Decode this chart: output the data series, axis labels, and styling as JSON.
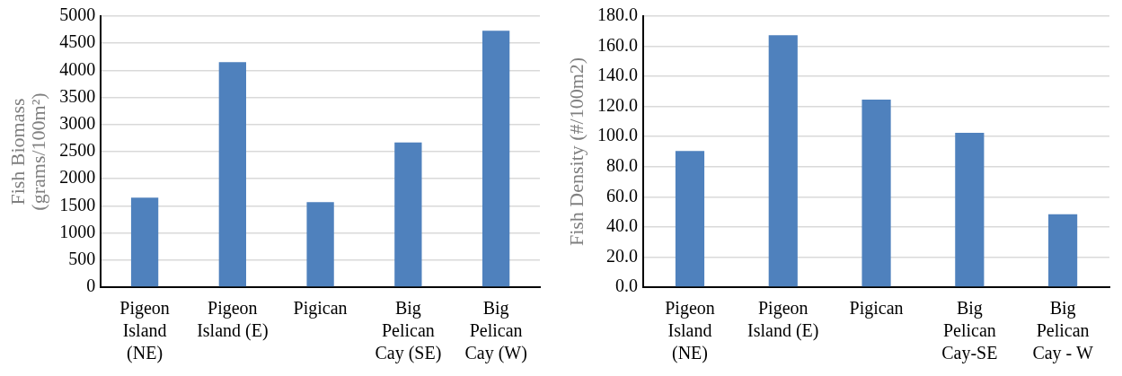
{
  "chart_data": [
    {
      "type": "bar",
      "ylabel": "Fish Biomass\n(grams/100m²)",
      "categories": [
        "Pigeon Island (NE)",
        "Pigeon Island (E)",
        "Pigican",
        "Big Pelican Cay (SE)",
        "Big Pelican Cay (W)"
      ],
      "values": [
        1650,
        4150,
        1570,
        2670,
        4730
      ],
      "color": "#4f81bd",
      "ylim": [
        0,
        5000
      ],
      "yticks": [
        0,
        500,
        1000,
        1500,
        2000,
        2500,
        3000,
        3500,
        4000,
        4500,
        5000
      ],
      "grid": "y",
      "legend": false
    },
    {
      "type": "bar",
      "ylabel": "Fish Density (#/100m2)",
      "categories": [
        "Pigeon Island (NE)",
        "Pigeon Island (E)",
        "Pigican",
        "Big Pelican Cay-SE",
        "Big Pelican Cay - W"
      ],
      "values": [
        90.5,
        167.3,
        124.6,
        102.5,
        48.5
      ],
      "color": "#4f81bd",
      "ylim": [
        0,
        180
      ],
      "yticks": [
        {
          "value": 0,
          "label": "0.0"
        },
        {
          "value": 20,
          "label": "20.0"
        },
        {
          "value": 40,
          "label": "40.0"
        },
        {
          "value": 60,
          "label": "60.0"
        },
        {
          "value": 80,
          "label": "80.0"
        },
        {
          "value": 100,
          "label": "100.0"
        },
        {
          "value": 120,
          "label": "120.0"
        },
        {
          "value": 140,
          "label": "140.0"
        },
        {
          "value": 160,
          "label": "160.0"
        },
        {
          "value": 180,
          "label": "180.0"
        }
      ],
      "grid": "y",
      "legend": false
    }
  ]
}
